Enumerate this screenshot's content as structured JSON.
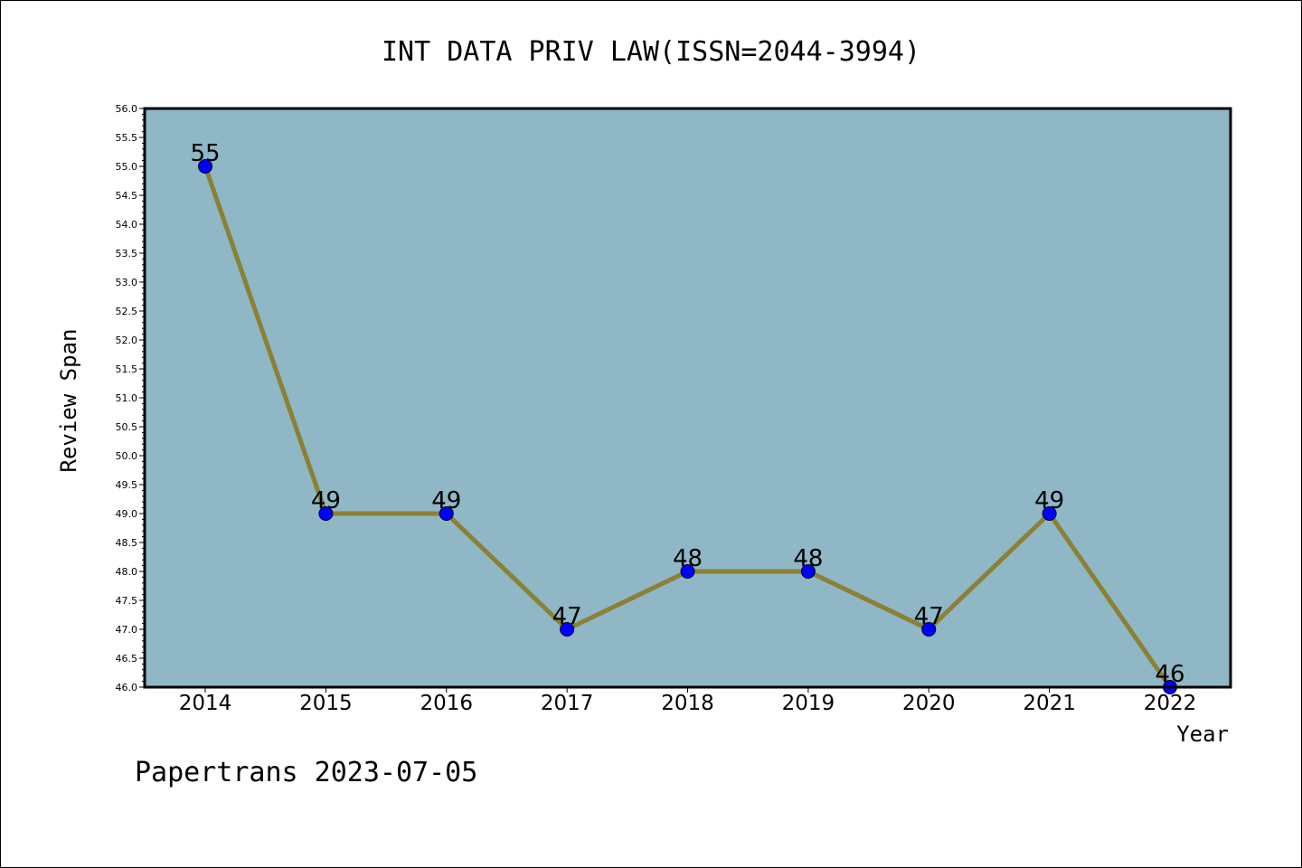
{
  "chart_data": {
    "type": "line",
    "title": "INT DATA PRIV LAW(ISSN=2044-3994)",
    "xlabel": "Year",
    "ylabel": "Review Span",
    "categories": [
      "2014",
      "2015",
      "2016",
      "2017",
      "2018",
      "2019",
      "2020",
      "2021",
      "2022"
    ],
    "values": [
      55,
      49,
      49,
      47,
      48,
      48,
      47,
      49,
      46
    ],
    "ylim": [
      46.0,
      56.0
    ],
    "ytick_step": 0.5,
    "grid": false,
    "legend": "none",
    "colors": {
      "plot_background": "#8fb7c5",
      "line": "#8b8035",
      "marker": "#0000ff"
    }
  },
  "footer": "Papertrans 2023-07-05"
}
